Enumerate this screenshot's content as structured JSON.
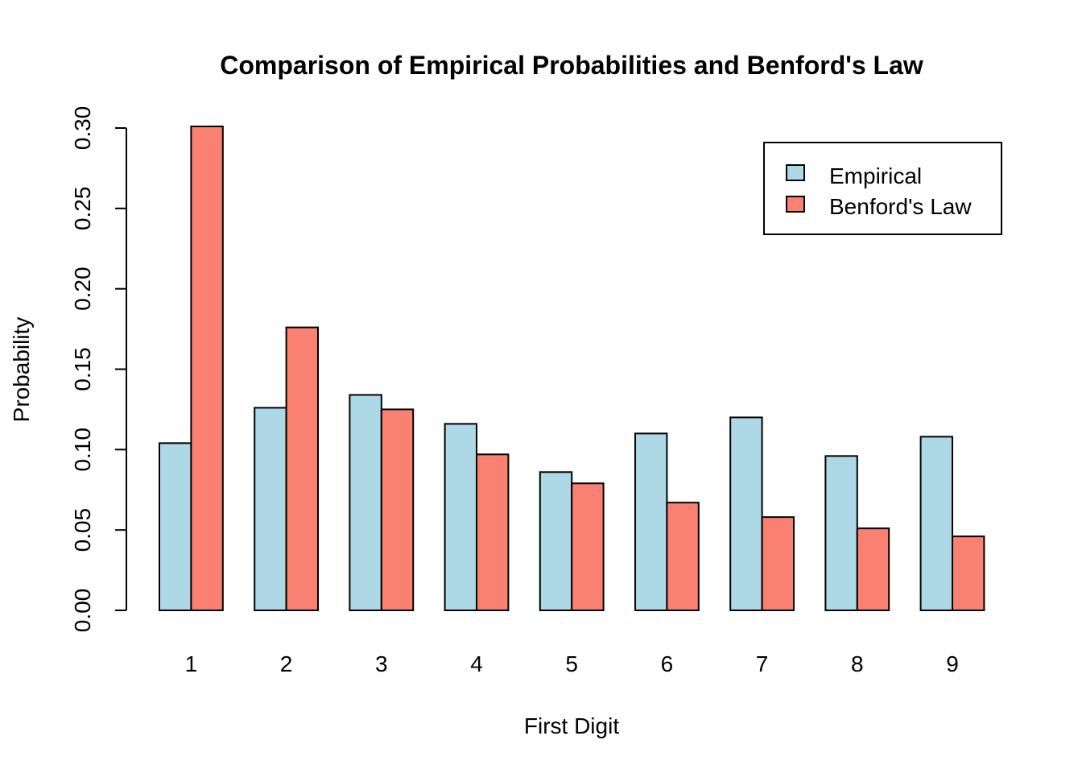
{
  "chart_data": {
    "type": "bar",
    "title": "Comparison of Empirical Probabilities and Benford's Law",
    "xlabel": "First Digit",
    "ylabel": "Probability",
    "categories": [
      "1",
      "2",
      "3",
      "4",
      "5",
      "6",
      "7",
      "8",
      "9"
    ],
    "series": [
      {
        "name": "Empirical",
        "color": "#add8e6",
        "values": [
          0.104,
          0.126,
          0.134,
          0.116,
          0.086,
          0.11,
          0.12,
          0.096,
          0.108
        ]
      },
      {
        "name": "Benford's Law",
        "color": "#fa8072",
        "values": [
          0.301,
          0.176,
          0.125,
          0.097,
          0.079,
          0.067,
          0.058,
          0.051,
          0.046
        ]
      }
    ],
    "ylim": [
      0,
      0.3
    ],
    "yticks": [
      "0.00",
      "0.05",
      "0.10",
      "0.15",
      "0.20",
      "0.25",
      "0.30"
    ],
    "grid": false,
    "legend_position": "top-right",
    "bar_border_color": "#000000"
  }
}
